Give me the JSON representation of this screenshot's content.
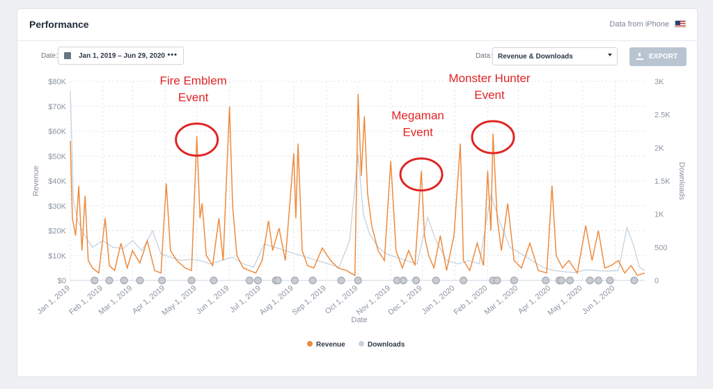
{
  "header": {
    "title": "Performance",
    "data_from": "Data from iPhone",
    "flag_icon": "us-flag-icon"
  },
  "controls": {
    "date_label": "Date:",
    "date_range": "Jan 1, 2019  –  Jun 29, 2020",
    "more_icon": "•••",
    "data_label": "Data:",
    "data_select": "Revenue & Downloads",
    "export_label": "EXPORT"
  },
  "colors": {
    "revenue": "#ee8a3c",
    "downloads": "#c6d2de",
    "annotation": "#e02424"
  },
  "chart_data": {
    "type": "line",
    "xlabel": "Date",
    "ylabel_left": "Revenue",
    "ylabel_right": "Downloads",
    "x_range": [
      "2019-01-01",
      "2020-06-29"
    ],
    "y_left_range": [
      0,
      80000
    ],
    "y_right_range": [
      0,
      3000
    ],
    "y_left_ticks": [
      "$0",
      "$10K",
      "$20K",
      "$30K",
      "$40K",
      "$50K",
      "$60K",
      "$70K",
      "$80K"
    ],
    "y_right_ticks": [
      "0",
      "500",
      "1K",
      "1.5K",
      "2K",
      "2.5K",
      "3K"
    ],
    "x_ticks": [
      {
        "date": "2019-01-01",
        "label": "Jan 1, 2019"
      },
      {
        "date": "2019-02-01",
        "label": "Feb 1, 2019"
      },
      {
        "date": "2019-03-01",
        "label": "Mar 1, 2019"
      },
      {
        "date": "2019-04-01",
        "label": "Apr 1, 2019"
      },
      {
        "date": "2019-05-01",
        "label": "May 1, 2019"
      },
      {
        "date": "2019-06-01",
        "label": "Jun 1, 2019"
      },
      {
        "date": "2019-07-01",
        "label": "Jul 1, 2019"
      },
      {
        "date": "2019-08-01",
        "label": "Aug 1, 2019"
      },
      {
        "date": "2019-09-01",
        "label": "Sep 1, 2019"
      },
      {
        "date": "2019-10-01",
        "label": "Oct 1, 2019"
      },
      {
        "date": "2019-11-01",
        "label": "Nov 1, 2019"
      },
      {
        "date": "2019-12-01",
        "label": "Dec 1, 2019"
      },
      {
        "date": "2020-01-01",
        "label": "Jan 1, 2020"
      },
      {
        "date": "2020-02-01",
        "label": "Feb 1, 2020"
      },
      {
        "date": "2020-03-01",
        "label": "Mar 1, 2020"
      },
      {
        "date": "2020-04-01",
        "label": "Apr 1, 2020"
      },
      {
        "date": "2020-05-01",
        "label": "May 1, 2020"
      },
      {
        "date": "2020-06-01",
        "label": "Jun 1, 2020"
      }
    ],
    "grid": true,
    "legend": {
      "placement": "bottom-center",
      "entries": [
        "Revenue",
        "Downloads"
      ]
    },
    "series": [
      {
        "name": "Revenue",
        "axis": "left",
        "points": [
          [
            "2019-01-01",
            56000
          ],
          [
            "2019-01-03",
            25000
          ],
          [
            "2019-01-06",
            18000
          ],
          [
            "2019-01-09",
            38000
          ],
          [
            "2019-01-12",
            12000
          ],
          [
            "2019-01-15",
            34000
          ],
          [
            "2019-01-18",
            8000
          ],
          [
            "2019-01-22",
            5000
          ],
          [
            "2019-01-28",
            3000
          ],
          [
            "2019-02-03",
            25000
          ],
          [
            "2019-02-07",
            6000
          ],
          [
            "2019-02-12",
            4000
          ],
          [
            "2019-02-18",
            15000
          ],
          [
            "2019-02-24",
            5000
          ],
          [
            "2019-03-01",
            12000
          ],
          [
            "2019-03-08",
            7000
          ],
          [
            "2019-03-15",
            16000
          ],
          [
            "2019-03-22",
            4000
          ],
          [
            "2019-03-28",
            3000
          ],
          [
            "2019-04-02",
            39000
          ],
          [
            "2019-04-06",
            12000
          ],
          [
            "2019-04-12",
            8000
          ],
          [
            "2019-04-20",
            5000
          ],
          [
            "2019-04-26",
            4000
          ],
          [
            "2019-05-01",
            58000
          ],
          [
            "2019-05-04",
            25000
          ],
          [
            "2019-05-06",
            31000
          ],
          [
            "2019-05-10",
            10000
          ],
          [
            "2019-05-16",
            6000
          ],
          [
            "2019-05-22",
            25000
          ],
          [
            "2019-05-26",
            8000
          ],
          [
            "2019-06-01",
            70000
          ],
          [
            "2019-06-04",
            30000
          ],
          [
            "2019-06-08",
            10000
          ],
          [
            "2019-06-14",
            5000
          ],
          [
            "2019-06-20",
            4000
          ],
          [
            "2019-06-26",
            3000
          ],
          [
            "2019-07-02",
            8000
          ],
          [
            "2019-07-08",
            24000
          ],
          [
            "2019-07-12",
            12000
          ],
          [
            "2019-07-18",
            21000
          ],
          [
            "2019-07-24",
            8000
          ],
          [
            "2019-08-01",
            51000
          ],
          [
            "2019-08-03",
            25000
          ],
          [
            "2019-08-05",
            55000
          ],
          [
            "2019-08-09",
            12000
          ],
          [
            "2019-08-14",
            6000
          ],
          [
            "2019-08-20",
            5000
          ],
          [
            "2019-08-28",
            13000
          ],
          [
            "2019-09-05",
            8000
          ],
          [
            "2019-09-12",
            5000
          ],
          [
            "2019-09-20",
            4000
          ],
          [
            "2019-09-28",
            2000
          ],
          [
            "2019-10-01",
            75000
          ],
          [
            "2019-10-04",
            42000
          ],
          [
            "2019-10-07",
            66000
          ],
          [
            "2019-10-10",
            35000
          ],
          [
            "2019-10-14",
            22000
          ],
          [
            "2019-10-20",
            12000
          ],
          [
            "2019-10-26",
            8000
          ],
          [
            "2019-11-01",
            48000
          ],
          [
            "2019-11-06",
            12000
          ],
          [
            "2019-11-12",
            5000
          ],
          [
            "2019-11-18",
            12000
          ],
          [
            "2019-11-24",
            6000
          ],
          [
            "2019-11-30",
            44000
          ],
          [
            "2019-12-03",
            18000
          ],
          [
            "2019-12-07",
            10000
          ],
          [
            "2019-12-12",
            5000
          ],
          [
            "2019-12-18",
            18000
          ],
          [
            "2019-12-24",
            4000
          ],
          [
            "2019-12-31",
            18000
          ],
          [
            "2020-01-06",
            55000
          ],
          [
            "2020-01-09",
            8000
          ],
          [
            "2020-01-15",
            4000
          ],
          [
            "2020-01-22",
            15000
          ],
          [
            "2020-01-28",
            6000
          ],
          [
            "2020-02-01",
            44000
          ],
          [
            "2020-02-04",
            20000
          ],
          [
            "2020-02-06",
            59000
          ],
          [
            "2020-02-10",
            25000
          ],
          [
            "2020-02-14",
            12000
          ],
          [
            "2020-02-20",
            31000
          ],
          [
            "2020-02-26",
            8000
          ],
          [
            "2020-03-04",
            5000
          ],
          [
            "2020-03-12",
            15000
          ],
          [
            "2020-03-20",
            4000
          ],
          [
            "2020-03-28",
            3000
          ],
          [
            "2020-04-02",
            38000
          ],
          [
            "2020-04-06",
            10000
          ],
          [
            "2020-04-12",
            5000
          ],
          [
            "2020-04-18",
            8000
          ],
          [
            "2020-04-26",
            3000
          ],
          [
            "2020-05-04",
            22000
          ],
          [
            "2020-05-10",
            8000
          ],
          [
            "2020-05-16",
            20000
          ],
          [
            "2020-05-22",
            5000
          ],
          [
            "2020-05-28",
            6000
          ],
          [
            "2020-06-04",
            8000
          ],
          [
            "2020-06-10",
            3000
          ],
          [
            "2020-06-16",
            6000
          ],
          [
            "2020-06-22",
            2000
          ],
          [
            "2020-06-29",
            3000
          ]
        ]
      },
      {
        "name": "Downloads",
        "axis": "right",
        "points": [
          [
            "2019-01-01",
            2850
          ],
          [
            "2019-01-04",
            1200
          ],
          [
            "2019-01-08",
            900
          ],
          [
            "2019-01-14",
            700
          ],
          [
            "2019-01-22",
            500
          ],
          [
            "2019-02-01",
            600
          ],
          [
            "2019-02-10",
            500
          ],
          [
            "2019-02-20",
            480
          ],
          [
            "2019-03-01",
            600
          ],
          [
            "2019-03-10",
            450
          ],
          [
            "2019-03-20",
            750
          ],
          [
            "2019-03-28",
            400
          ],
          [
            "2019-04-06",
            350
          ],
          [
            "2019-04-16",
            300
          ],
          [
            "2019-04-26",
            320
          ],
          [
            "2019-05-04",
            300
          ],
          [
            "2019-05-14",
            250
          ],
          [
            "2019-05-24",
            300
          ],
          [
            "2019-06-04",
            350
          ],
          [
            "2019-06-14",
            250
          ],
          [
            "2019-06-24",
            200
          ],
          [
            "2019-07-04",
            550
          ],
          [
            "2019-07-14",
            500
          ],
          [
            "2019-07-24",
            450
          ],
          [
            "2019-08-03",
            400
          ],
          [
            "2019-08-13",
            350
          ],
          [
            "2019-08-23",
            300
          ],
          [
            "2019-09-03",
            250
          ],
          [
            "2019-09-13",
            200
          ],
          [
            "2019-09-23",
            600
          ],
          [
            "2019-10-01",
            1900
          ],
          [
            "2019-10-06",
            1000
          ],
          [
            "2019-10-12",
            700
          ],
          [
            "2019-10-20",
            500
          ],
          [
            "2019-10-28",
            400
          ],
          [
            "2019-11-06",
            350
          ],
          [
            "2019-11-16",
            300
          ],
          [
            "2019-11-26",
            250
          ],
          [
            "2019-12-06",
            950
          ],
          [
            "2019-12-14",
            600
          ],
          [
            "2019-12-24",
            300
          ],
          [
            "2020-01-04",
            250
          ],
          [
            "2020-01-14",
            300
          ],
          [
            "2020-01-24",
            250
          ],
          [
            "2020-02-04",
            1300
          ],
          [
            "2020-02-12",
            900
          ],
          [
            "2020-02-22",
            500
          ],
          [
            "2020-03-04",
            400
          ],
          [
            "2020-03-14",
            300
          ],
          [
            "2020-03-24",
            200
          ],
          [
            "2020-04-04",
            150
          ],
          [
            "2020-04-14",
            130
          ],
          [
            "2020-04-24",
            120
          ],
          [
            "2020-05-04",
            160
          ],
          [
            "2020-05-14",
            150
          ],
          [
            "2020-05-24",
            140
          ],
          [
            "2020-06-04",
            150
          ],
          [
            "2020-06-12",
            800
          ],
          [
            "2020-06-18",
            550
          ],
          [
            "2020-06-24",
            200
          ],
          [
            "2020-06-29",
            150
          ]
        ]
      }
    ],
    "event_markers": [
      "2019-01-24",
      "2019-02-07",
      "2019-02-21",
      "2019-03-08",
      "2019-03-29",
      "2019-04-26",
      "2019-05-17",
      "2019-06-20",
      "2019-06-28",
      "2019-07-15",
      "2019-07-17",
      "2019-08-02",
      "2019-08-19",
      "2019-09-15",
      "2019-10-01",
      "2019-11-07",
      "2019-11-13",
      "2019-11-25",
      "2019-12-14",
      "2020-01-09",
      "2020-02-06",
      "2020-02-10",
      "2020-02-26",
      "2020-03-27",
      "2020-04-09",
      "2020-04-11",
      "2020-04-19",
      "2020-05-08",
      "2020-05-16",
      "2020-05-27",
      "2020-06-19"
    ],
    "annotations": [
      {
        "lines": [
          "Fire Emblem",
          "Event"
        ],
        "date": "2019-05-01",
        "value": 58000
      },
      {
        "lines": [
          "Megaman",
          "Event"
        ],
        "date": "2019-11-30",
        "value": 44000
      },
      {
        "lines": [
          "Monster Hunter",
          "Event"
        ],
        "date": "2020-02-06",
        "value": 59000
      }
    ]
  }
}
